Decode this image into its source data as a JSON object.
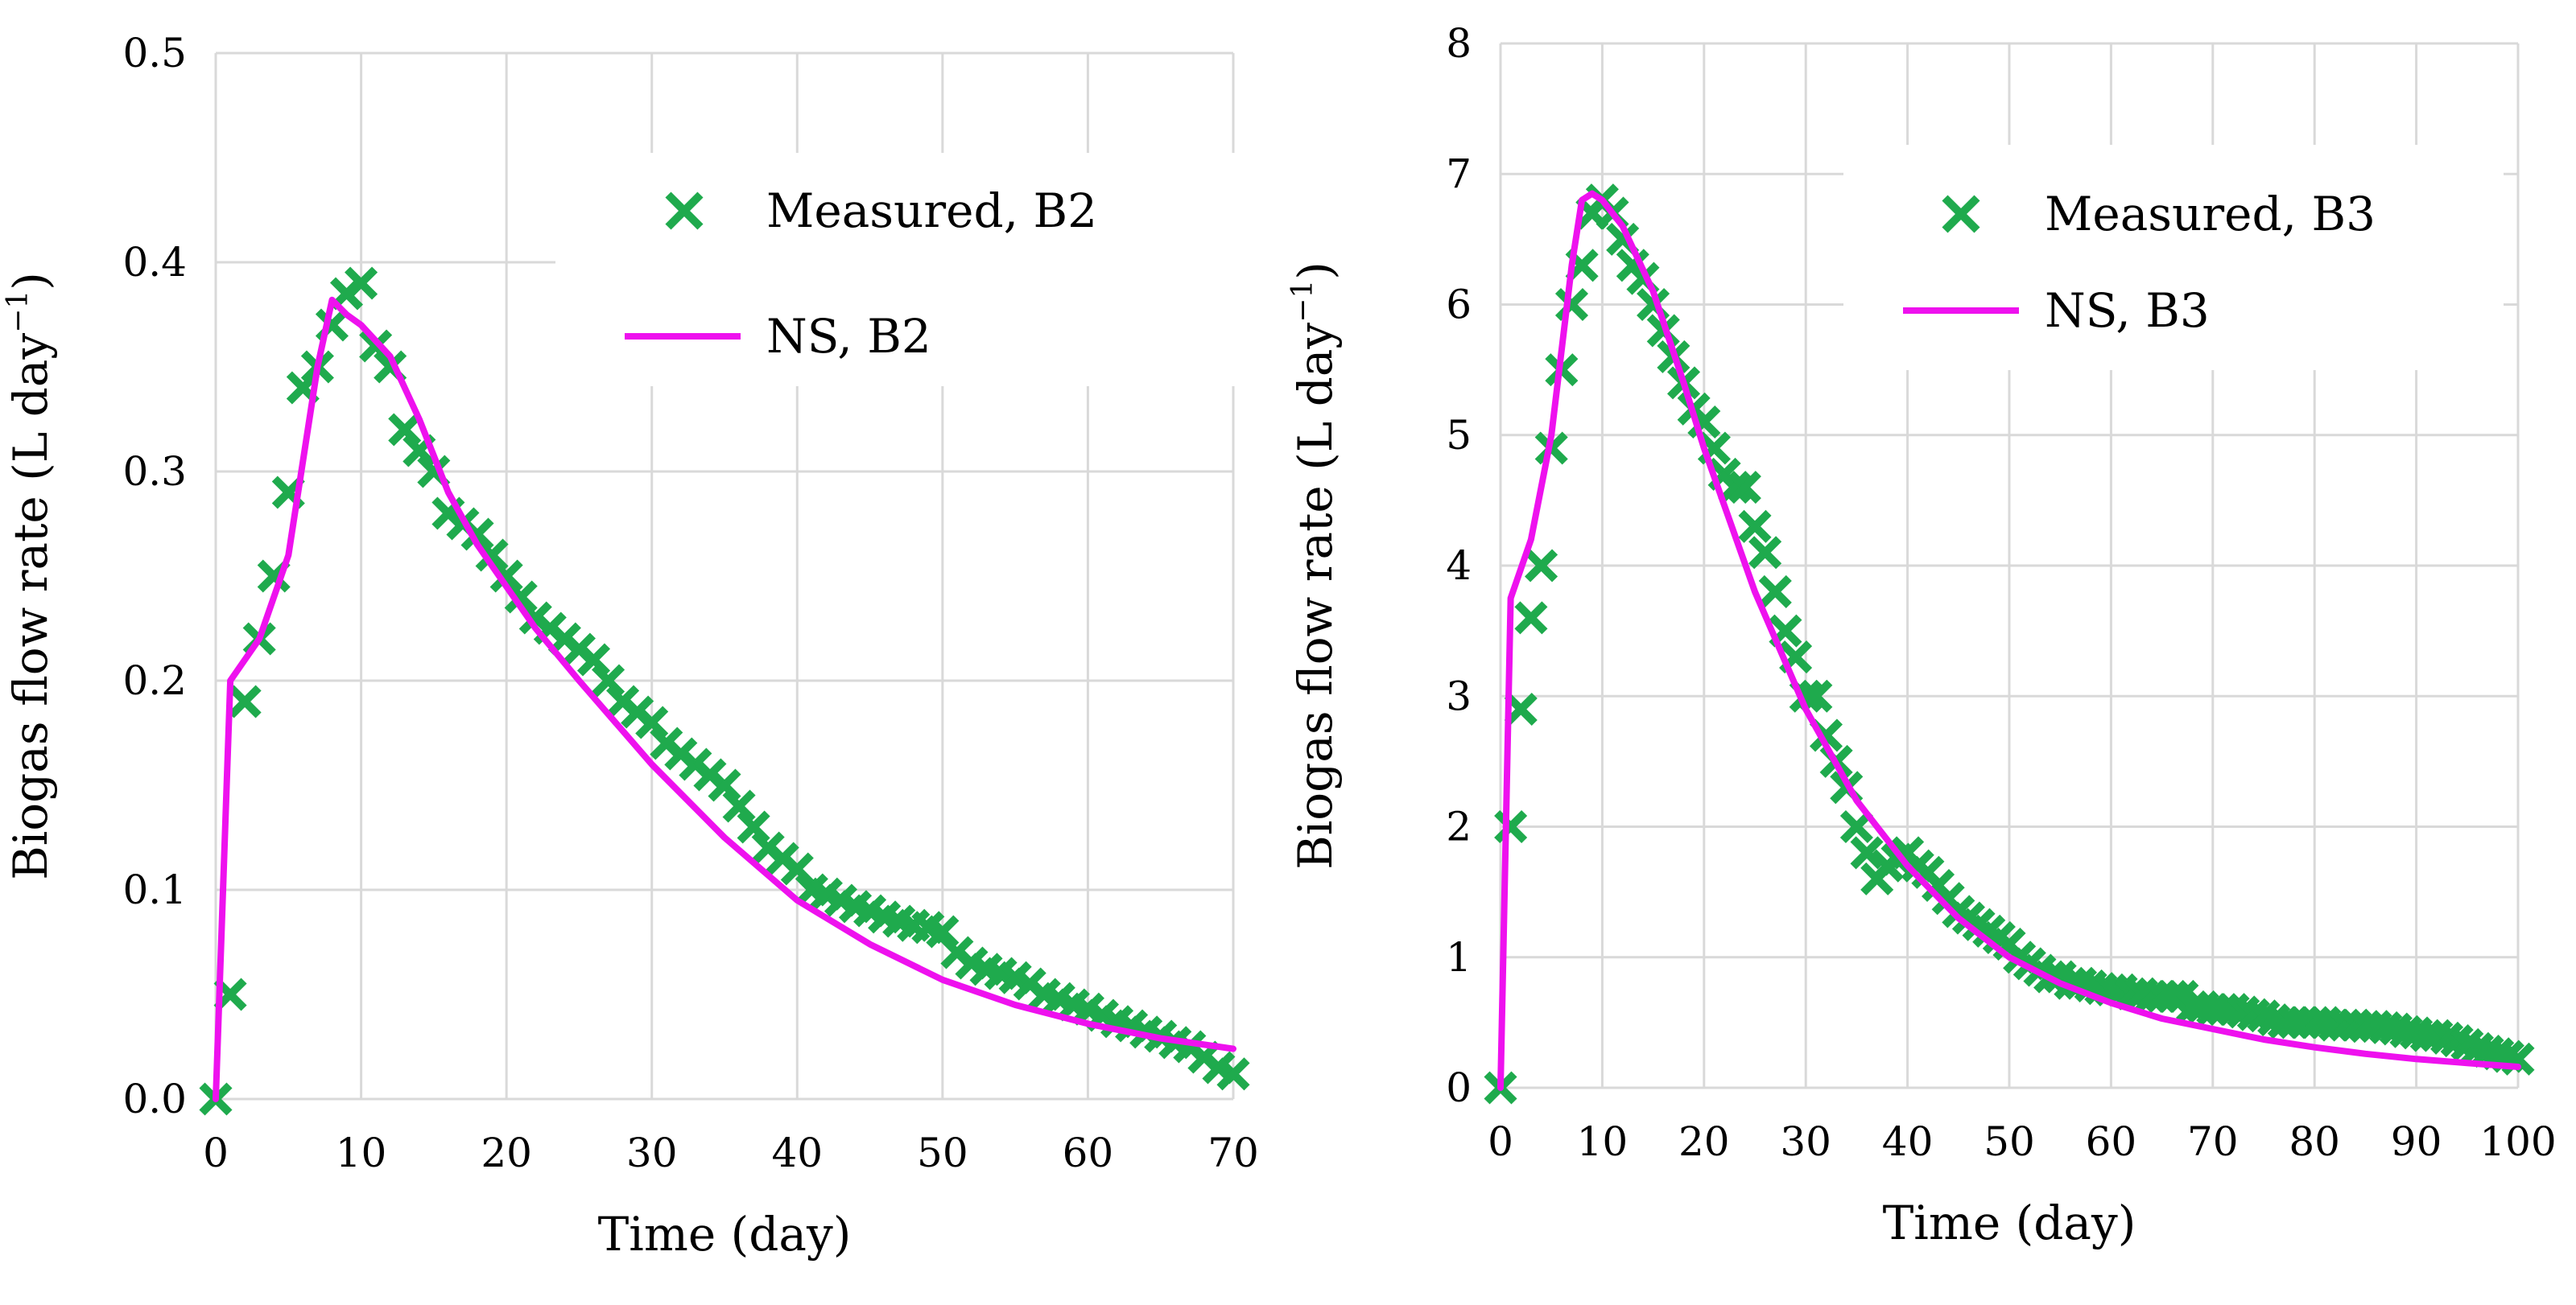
{
  "chart_data": [
    {
      "type": "scatter",
      "id": "b2",
      "title": "",
      "xlabel": "Time (day)",
      "ylabel": {
        "main": "Biogas flow rate (L day",
        "sup": "−1",
        "end": ")"
      },
      "xlim": [
        0,
        70
      ],
      "ylim": [
        0,
        0.5
      ],
      "xticks": [
        0,
        10,
        20,
        30,
        40,
        50,
        60,
        70
      ],
      "yticks": [
        0,
        0.1,
        0.2,
        0.3,
        0.4,
        0.5
      ],
      "ytick_labels": [
        "0.0",
        "0.1",
        "0.2",
        "0.3",
        "0.4",
        "0.5"
      ],
      "grid": true,
      "legend_position": "top-right",
      "colors": {
        "measured": "#1faa4d",
        "model": "#ee11ee",
        "grid": "#d9d9d9"
      },
      "series": [
        {
          "name": "Measured, B2",
          "kind": "marker",
          "marker": "x",
          "x": [
            0,
            1,
            2,
            3,
            4,
            5,
            6,
            7,
            8,
            9,
            10,
            11,
            12,
            13,
            14,
            15,
            16,
            17,
            18,
            19,
            20,
            21,
            22,
            23,
            24,
            25,
            26,
            27,
            28,
            29,
            30,
            31,
            32,
            33,
            34,
            35,
            36,
            37,
            38,
            39,
            40,
            41,
            42,
            43,
            44,
            45,
            46,
            47,
            48,
            49,
            50,
            51,
            52,
            53,
            54,
            55,
            56,
            57,
            58,
            59,
            60,
            61,
            62,
            63,
            64,
            65,
            66,
            67,
            68,
            69,
            70
          ],
          "y": [
            0,
            0.05,
            0.19,
            0.22,
            0.25,
            0.29,
            0.34,
            0.35,
            0.37,
            0.385,
            0.39,
            0.36,
            0.35,
            0.32,
            0.31,
            0.3,
            0.28,
            0.275,
            0.27,
            0.26,
            0.25,
            0.24,
            0.23,
            0.225,
            0.22,
            0.215,
            0.21,
            0.2,
            0.19,
            0.185,
            0.18,
            0.17,
            0.165,
            0.16,
            0.155,
            0.15,
            0.14,
            0.13,
            0.12,
            0.115,
            0.11,
            0.1,
            0.098,
            0.095,
            0.092,
            0.09,
            0.087,
            0.085,
            0.083,
            0.082,
            0.08,
            0.07,
            0.065,
            0.062,
            0.06,
            0.058,
            0.055,
            0.05,
            0.048,
            0.045,
            0.043,
            0.04,
            0.037,
            0.035,
            0.032,
            0.03,
            0.027,
            0.025,
            0.02,
            0.015,
            0.012
          ]
        },
        {
          "name": "NS, B2",
          "kind": "line",
          "x": [
            0,
            1,
            3,
            5,
            7,
            8,
            9,
            10,
            12,
            14,
            16,
            18,
            20,
            22,
            25,
            30,
            35,
            40,
            45,
            50,
            55,
            60,
            65,
            70
          ],
          "y": [
            0,
            0.2,
            0.22,
            0.26,
            0.35,
            0.382,
            0.375,
            0.37,
            0.355,
            0.325,
            0.29,
            0.265,
            0.245,
            0.225,
            0.2,
            0.16,
            0.125,
            0.095,
            0.074,
            0.057,
            0.045,
            0.036,
            0.029,
            0.024
          ]
        }
      ]
    },
    {
      "type": "scatter",
      "id": "b3",
      "title": "",
      "xlabel": "Time (day)",
      "ylabel": {
        "main": "Biogas flow rate (L day",
        "sup": "−1",
        "end": ")"
      },
      "xlim": [
        0,
        100
      ],
      "ylim": [
        0,
        8
      ],
      "xticks": [
        0,
        10,
        20,
        30,
        40,
        50,
        60,
        70,
        80,
        90,
        100
      ],
      "yticks": [
        0,
        1,
        2,
        3,
        4,
        5,
        6,
        7,
        8
      ],
      "ytick_labels": [
        "0",
        "1",
        "2",
        "3",
        "4",
        "5",
        "6",
        "7",
        "8"
      ],
      "grid": true,
      "legend_position": "top-right",
      "colors": {
        "measured": "#1faa4d",
        "model": "#ee11ee",
        "grid": "#d9d9d9"
      },
      "series": [
        {
          "name": "Measured, B3",
          "kind": "marker",
          "marker": "x",
          "x": [
            0,
            1,
            2,
            3,
            4,
            5,
            6,
            7,
            8,
            9,
            10,
            11,
            12,
            13,
            14,
            15,
            16,
            17,
            18,
            19,
            20,
            21,
            22,
            23,
            24,
            25,
            26,
            27,
            28,
            29,
            30,
            31,
            32,
            33,
            34,
            35,
            36,
            37,
            38,
            39,
            40,
            41,
            42,
            43,
            44,
            45,
            46,
            47,
            48,
            49,
            50,
            51,
            52,
            53,
            54,
            55,
            56,
            57,
            58,
            59,
            60,
            61,
            62,
            63,
            64,
            65,
            66,
            67,
            68,
            69,
            70,
            71,
            72,
            73,
            74,
            75,
            76,
            77,
            78,
            79,
            80,
            81,
            82,
            83,
            84,
            85,
            86,
            87,
            88,
            89,
            90,
            91,
            92,
            93,
            94,
            95,
            96,
            97,
            98,
            99,
            100
          ],
          "y": [
            0,
            2.0,
            2.9,
            3.6,
            4.0,
            4.9,
            5.5,
            6.0,
            6.3,
            6.7,
            6.8,
            6.7,
            6.5,
            6.3,
            6.2,
            6.0,
            5.8,
            5.6,
            5.4,
            5.2,
            5.1,
            4.9,
            4.7,
            4.6,
            4.6,
            4.3,
            4.1,
            3.8,
            3.5,
            3.3,
            3.0,
            3.0,
            2.7,
            2.5,
            2.3,
            2.0,
            1.8,
            1.6,
            1.7,
            1.75,
            1.8,
            1.7,
            1.65,
            1.55,
            1.45,
            1.35,
            1.3,
            1.25,
            1.2,
            1.15,
            1.1,
            1.0,
            0.95,
            0.9,
            0.85,
            0.85,
            0.8,
            0.8,
            0.78,
            0.76,
            0.75,
            0.75,
            0.72,
            0.72,
            0.7,
            0.7,
            0.7,
            0.7,
            0.62,
            0.62,
            0.6,
            0.6,
            0.6,
            0.58,
            0.56,
            0.55,
            0.52,
            0.5,
            0.5,
            0.5,
            0.5,
            0.5,
            0.48,
            0.48,
            0.48,
            0.47,
            0.47,
            0.46,
            0.45,
            0.43,
            0.42,
            0.4,
            0.4,
            0.38,
            0.36,
            0.33,
            0.3,
            0.28,
            0.26,
            0.24,
            0.22
          ]
        },
        {
          "name": "NS, B3",
          "kind": "line",
          "x": [
            0,
            1,
            3,
            5,
            7,
            8,
            9,
            10,
            12,
            15,
            18,
            20,
            25,
            30,
            35,
            40,
            45,
            50,
            55,
            60,
            65,
            70,
            75,
            80,
            85,
            90,
            95,
            100
          ],
          "y": [
            0,
            3.75,
            4.2,
            5.0,
            6.3,
            6.8,
            6.85,
            6.8,
            6.6,
            6.1,
            5.4,
            4.9,
            3.8,
            2.9,
            2.2,
            1.7,
            1.3,
            1.0,
            0.8,
            0.65,
            0.53,
            0.45,
            0.37,
            0.31,
            0.26,
            0.22,
            0.19,
            0.16
          ]
        }
      ]
    }
  ]
}
